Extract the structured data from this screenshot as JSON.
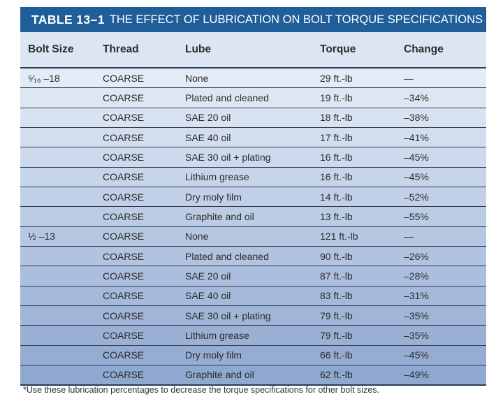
{
  "title": {
    "number": "TABLE 13–1",
    "text": "THE EFFECT OF LUBRICATION ON BOLT TORQUE SPECIFICATIONS"
  },
  "headers": [
    "Bolt Size",
    "Thread",
    "Lube",
    "Torque",
    "Change"
  ],
  "rows": [
    {
      "size": "⁵⁄₁₆ –18",
      "thread": "COARSE",
      "lube": "None",
      "torque": "29 ft.-lb",
      "change": "—"
    },
    {
      "size": "",
      "thread": "COARSE",
      "lube": "Plated and cleaned",
      "torque": "19 ft.-lb",
      "change": "–34%"
    },
    {
      "size": "",
      "thread": "COARSE",
      "lube": "SAE 20 oil",
      "torque": "18 ft.-lb",
      "change": "–38%"
    },
    {
      "size": "",
      "thread": "COARSE",
      "lube": "SAE 40 oil",
      "torque": "17 ft.-lb",
      "change": "–41%"
    },
    {
      "size": "",
      "thread": "COARSE",
      "lube": "SAE 30 oil + plating",
      "torque": "16 ft.-lb",
      "change": "–45%"
    },
    {
      "size": "",
      "thread": "COARSE",
      "lube": "Lithium grease",
      "torque": "16 ft.-lb",
      "change": "–45%"
    },
    {
      "size": "",
      "thread": "COARSE",
      "lube": "Dry moly film",
      "torque": "14 ft.-lb",
      "change": "–52%"
    },
    {
      "size": "",
      "thread": "COARSE",
      "lube": "Graphite and oil",
      "torque": "13 ft.-lb",
      "change": "–55%"
    },
    {
      "size": "½ –13",
      "thread": "COARSE",
      "lube": "None",
      "torque": "121 ft.-lb",
      "change": "—"
    },
    {
      "size": "",
      "thread": "COARSE",
      "lube": "Plated and cleaned",
      "torque": "90 ft.-lb",
      "change": "–26%"
    },
    {
      "size": "",
      "thread": "COARSE",
      "lube": "SAE 20 oil",
      "torque": "87 ft.-lb",
      "change": "–28%"
    },
    {
      "size": "",
      "thread": "COARSE",
      "lube": "SAE 40 oil",
      "torque": "83 ft.-lb",
      "change": "–31%"
    },
    {
      "size": "",
      "thread": "COARSE",
      "lube": "SAE 30 oil + plating",
      "torque": "79 ft.-lb",
      "change": "–35%"
    },
    {
      "size": "",
      "thread": "COARSE",
      "lube": "Lithium grease",
      "torque": "79 ft.-lb",
      "change": "–35%"
    },
    {
      "size": "",
      "thread": "COARSE",
      "lube": "Dry moly film",
      "torque": "66 ft.-lb",
      "change": "–45%"
    },
    {
      "size": "",
      "thread": "COARSE",
      "lube": "Graphite and oil",
      "torque": "62 ft.-lb",
      "change": "–49%"
    }
  ],
  "footnote": "*Use these lubrication percentages to decrease the torque specifications for other bolt sizes.",
  "colors": {
    "title_bar": "#1f5e98",
    "header_bg": "#dce6f3",
    "row_gradient_start": "#e3ebf6",
    "row_gradient_end": "#8fa8d0",
    "rule": "#2a3b52"
  }
}
